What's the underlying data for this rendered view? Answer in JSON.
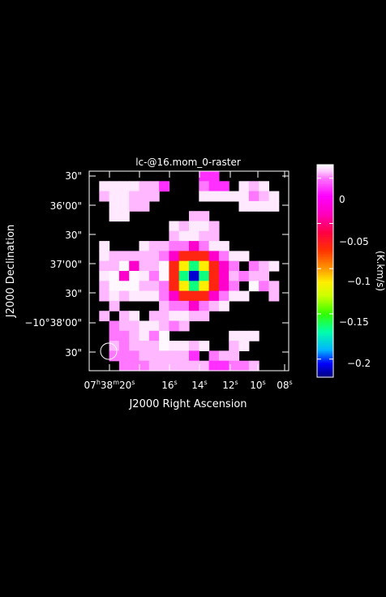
{
  "chart_data": {
    "type": "heatmap",
    "title": "lc-@16.mom_0-raster",
    "xlabel": "J2000 Right Ascension",
    "ylabel": "J2000 Declination",
    "colorbar_label": "(K.km/s)",
    "x_ticks": [
      {
        "value": "07h38m20s",
        "main": "07",
        "sup1": "h",
        "mid": "38",
        "sup2": "m",
        "last": "20",
        "sup3": "s"
      },
      {
        "value": "16s",
        "main": "16",
        "sup": "s"
      },
      {
        "value": "14s",
        "main": "14",
        "sup": "s"
      },
      {
        "value": "12s",
        "main": "12",
        "sup": "s"
      },
      {
        "value": "10s",
        "main": "10",
        "sup": "s"
      },
      {
        "value": "08s",
        "main": "08",
        "sup": "s"
      }
    ],
    "y_ticks": [
      "30\"",
      "36'00\"",
      "30\"",
      "37'00\"",
      "30\"",
      "−10°38'00\"",
      "30\""
    ],
    "colorbar_ticks": [
      "0",
      "−0.05",
      "−0.1",
      "−0.15",
      "−0.2"
    ],
    "colorbar_range": [
      -0.22,
      0.015
    ],
    "grid": false,
    "beam_marker": "circle",
    "colors": {
      "background": "#000000",
      "foreground": "#ffffff",
      "axes": "#ffffff"
    },
    "colormap": [
      {
        "value": -0.22,
        "color": "#00007a"
      },
      {
        "value": -0.205,
        "color": "#0000ff"
      },
      {
        "value": -0.19,
        "color": "#00b4ff"
      },
      {
        "value": -0.17,
        "color": "#00ffaa"
      },
      {
        "value": -0.15,
        "color": "#33ff00"
      },
      {
        "value": -0.13,
        "color": "#ccff00"
      },
      {
        "value": -0.115,
        "color": "#ffee00"
      },
      {
        "value": -0.1,
        "color": "#ff9900"
      },
      {
        "value": -0.08,
        "color": "#ff3300"
      },
      {
        "value": -0.06,
        "color": "#ff0044"
      },
      {
        "value": -0.04,
        "color": "#ff00bb"
      },
      {
        "value": -0.02,
        "color": "#ff00ff"
      },
      {
        "value": 0.0,
        "color": "#ff77ff"
      },
      {
        "value": 0.008,
        "color": "#ffccff"
      },
      {
        "value": 0.015,
        "color": "#ffffff"
      }
    ],
    "grid_size": [
      20,
      20
    ],
    "cells": [
      "...........ee.......",
      ".aaaabbe...cee.aba..",
      ".baabbb....aaaaacba.",
      "..aabb.........aaaa.",
      "..aa......bb........",
      "........abaab.......",
      "........baabb.......",
      ".a...abbccfcaa......",
      ".abbbbbcfAAAfcaa....",
      ".bbdfbbdAGJGAfc.cba.",
      ".adfdacdAJKJAfbcbb..",
      ".bdddbbcAGJGAfc.dcb.",
      ".babaaacfAAAfcaa..b.",
      "..b....bccfcba......",
      ".b.ba.bbaabb........",
      "..cbbaabcb..........",
      "..ccbacd......aaa...",
      "..bcbbbdaaba..ba....",
      "..cccbbbbbe.cbb.....",
      "...cccbbbbbbeeccb..."
    ]
  }
}
